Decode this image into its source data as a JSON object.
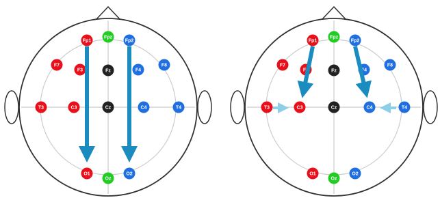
{
  "heads": [
    {
      "electrodes": [
        {
          "label": "Fp1"
        },
        {
          "label": "Fpz"
        },
        {
          "label": "Fp2"
        },
        {
          "label": "F7"
        },
        {
          "label": "F3"
        },
        {
          "label": "Fz"
        },
        {
          "label": "F4"
        },
        {
          "label": "F8"
        },
        {
          "label": "T3"
        },
        {
          "label": "C3"
        },
        {
          "label": "Cz"
        },
        {
          "label": "C4"
        },
        {
          "label": "T4"
        },
        {
          "label": "O1"
        },
        {
          "label": "Oz"
        },
        {
          "label": "O2"
        }
      ]
    },
    {
      "electrodes": [
        {
          "label": "Fp1"
        },
        {
          "label": "Fpz"
        },
        {
          "label": "Fp2"
        },
        {
          "label": "F7"
        },
        {
          "label": "F3"
        },
        {
          "label": "Fz"
        },
        {
          "label": "F4"
        },
        {
          "label": "F8"
        },
        {
          "label": "T3"
        },
        {
          "label": "C3"
        },
        {
          "label": "Cz"
        },
        {
          "label": "C4"
        },
        {
          "label": "T4"
        },
        {
          "label": "O1"
        },
        {
          "label": "Oz"
        },
        {
          "label": "O2"
        }
      ]
    }
  ]
}
